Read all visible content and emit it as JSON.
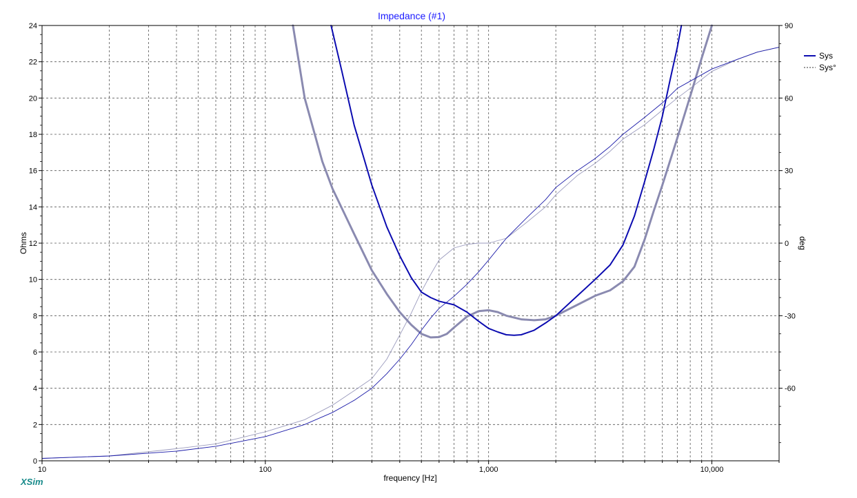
{
  "window": {
    "brand": "XSim"
  },
  "chart_data": {
    "type": "line",
    "title": "Impedance (#1)",
    "xlabel": "frequency [Hz]",
    "ylabel": "Ohms",
    "y2label": "deg",
    "x_scale": "log",
    "xlim": [
      10,
      20000
    ],
    "ylim": [
      0,
      24
    ],
    "y2lim": [
      -90,
      90
    ],
    "grid": true,
    "legend_position": "top-right",
    "x_ticks": [
      {
        "value": 10,
        "label": "10"
      },
      {
        "value": 100,
        "label": "100"
      },
      {
        "value": 1000,
        "label": "1,000"
      },
      {
        "value": 10000,
        "label": "10,000"
      }
    ],
    "y_ticks": [
      0,
      2,
      4,
      6,
      8,
      10,
      12,
      14,
      16,
      18,
      20,
      22,
      24
    ],
    "y2_ticks": [
      -60,
      -30,
      0,
      30,
      60,
      90
    ],
    "legend": [
      {
        "label": "Sys",
        "style": "solid"
      },
      {
        "label": "Sys°",
        "style": "dashed"
      }
    ],
    "series": [
      {
        "name": "Sys",
        "kind": "impedance",
        "axis": "left",
        "color": "#0b0bb0",
        "width": 2,
        "points": [
          [
            197,
            24
          ],
          [
            220,
            21.5
          ],
          [
            250,
            18.5
          ],
          [
            300,
            15.2
          ],
          [
            350,
            12.9
          ],
          [
            400,
            11.3
          ],
          [
            450,
            10.1
          ],
          [
            500,
            9.3
          ],
          [
            550,
            9.0
          ],
          [
            600,
            8.8
          ],
          [
            700,
            8.6
          ],
          [
            800,
            8.2
          ],
          [
            900,
            7.7
          ],
          [
            1000,
            7.3
          ],
          [
            1100,
            7.1
          ],
          [
            1200,
            6.95
          ],
          [
            1300,
            6.92
          ],
          [
            1400,
            6.95
          ],
          [
            1600,
            7.2
          ],
          [
            1800,
            7.6
          ],
          [
            2000,
            8.0
          ],
          [
            2500,
            9.1
          ],
          [
            3000,
            10.0
          ],
          [
            3500,
            10.8
          ],
          [
            4000,
            11.9
          ],
          [
            4500,
            13.5
          ],
          [
            5000,
            15.4
          ],
          [
            5500,
            17.2
          ],
          [
            6000,
            19.0
          ],
          [
            6500,
            21.0
          ],
          [
            7000,
            22.8
          ],
          [
            7300,
            24
          ]
        ]
      },
      {
        "name": "Sys°",
        "kind": "phase",
        "axis": "right",
        "color": "#1a1aa8",
        "width": 0.9,
        "points": [
          [
            10,
            -89
          ],
          [
            20,
            -88
          ],
          [
            40,
            -86
          ],
          [
            60,
            -84
          ],
          [
            100,
            -80
          ],
          [
            150,
            -75
          ],
          [
            200,
            -70
          ],
          [
            250,
            -65
          ],
          [
            300,
            -60
          ],
          [
            350,
            -54
          ],
          [
            400,
            -48
          ],
          [
            450,
            -42
          ],
          [
            500,
            -36
          ],
          [
            550,
            -31
          ],
          [
            600,
            -27
          ],
          [
            700,
            -22
          ],
          [
            800,
            -17
          ],
          [
            900,
            -12
          ],
          [
            1000,
            -7
          ],
          [
            1200,
            2
          ],
          [
            1500,
            11
          ],
          [
            1800,
            18
          ],
          [
            2000,
            23
          ],
          [
            2500,
            30
          ],
          [
            3000,
            35
          ],
          [
            3500,
            40
          ],
          [
            4000,
            45
          ],
          [
            5000,
            52
          ],
          [
            6000,
            58
          ],
          [
            7000,
            64
          ],
          [
            8000,
            67
          ],
          [
            10000,
            72
          ],
          [
            13000,
            76
          ],
          [
            16000,
            79
          ],
          [
            20000,
            81
          ]
        ]
      },
      {
        "name": "",
        "kind": "impedance",
        "axis": "left",
        "color": "#8a8ab0",
        "width": 3,
        "points": [
          [
            133,
            24
          ],
          [
            150,
            20.0
          ],
          [
            180,
            16.5
          ],
          [
            200,
            15.0
          ],
          [
            250,
            12.5
          ],
          [
            300,
            10.5
          ],
          [
            350,
            9.2
          ],
          [
            400,
            8.2
          ],
          [
            450,
            7.5
          ],
          [
            500,
            7.0
          ],
          [
            550,
            6.8
          ],
          [
            600,
            6.82
          ],
          [
            650,
            7.0
          ],
          [
            700,
            7.35
          ],
          [
            800,
            7.95
          ],
          [
            900,
            8.25
          ],
          [
            1000,
            8.3
          ],
          [
            1100,
            8.2
          ],
          [
            1200,
            8.0
          ],
          [
            1400,
            7.8
          ],
          [
            1600,
            7.75
          ],
          [
            1800,
            7.8
          ],
          [
            2000,
            8.0
          ],
          [
            2500,
            8.6
          ],
          [
            3000,
            9.1
          ],
          [
            3500,
            9.4
          ],
          [
            4000,
            9.9
          ],
          [
            4500,
            10.7
          ],
          [
            5000,
            12.2
          ],
          [
            5500,
            13.8
          ],
          [
            6000,
            15.2
          ],
          [
            7000,
            17.8
          ],
          [
            8000,
            20.1
          ],
          [
            9000,
            22.2
          ],
          [
            10000,
            24
          ]
        ]
      },
      {
        "name": "",
        "kind": "phase",
        "axis": "right",
        "color": "#9a9abd",
        "width": 0.9,
        "points": [
          [
            10,
            -89
          ],
          [
            20,
            -88
          ],
          [
            40,
            -85
          ],
          [
            60,
            -83
          ],
          [
            100,
            -78
          ],
          [
            150,
            -73
          ],
          [
            200,
            -67
          ],
          [
            250,
            -61
          ],
          [
            300,
            -56
          ],
          [
            350,
            -48
          ],
          [
            400,
            -38
          ],
          [
            450,
            -29
          ],
          [
            500,
            -20
          ],
          [
            550,
            -13
          ],
          [
            600,
            -7
          ],
          [
            700,
            -2
          ],
          [
            800,
            -0.5
          ],
          [
            900,
            0
          ],
          [
            1000,
            0
          ],
          [
            1200,
            2
          ],
          [
            1500,
            9
          ],
          [
            1800,
            15
          ],
          [
            2000,
            20
          ],
          [
            2500,
            28
          ],
          [
            3000,
            33
          ],
          [
            3500,
            38
          ],
          [
            4000,
            43
          ],
          [
            5000,
            49
          ],
          [
            6000,
            55
          ],
          [
            7000,
            60
          ],
          [
            8000,
            64
          ],
          [
            10000,
            71
          ],
          [
            13000,
            76
          ],
          [
            16000,
            79
          ],
          [
            20000,
            81
          ]
        ]
      }
    ]
  }
}
